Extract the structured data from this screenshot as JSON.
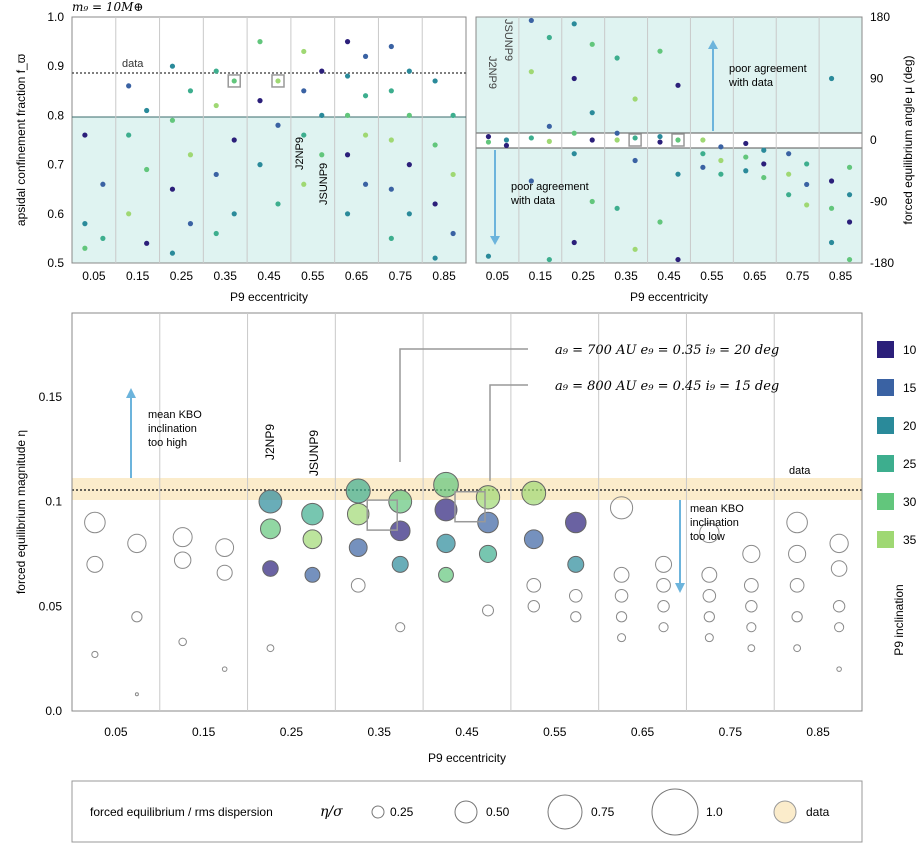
{
  "colors": {
    "panel_fill": "#dff3f1",
    "data_band": "#fbeccb",
    "arrow": "#6cb4dc",
    "inc_10": "#2b1f7a",
    "inc_15": "#3a62a3",
    "inc_20": "#2a8a9a",
    "inc_25": "#3dae8e",
    "inc_30": "#62c67c",
    "inc_35": "#9fd873"
  },
  "header_label": "m₉ = 10M⊕",
  "panel_a": {
    "ylabel": "apsidal confinement fraction  f_ϖ",
    "xlabel": "P9 eccentricity",
    "x_ticks": [
      "0.05",
      "0.15",
      "0.25",
      "0.35",
      "0.45",
      "0.55",
      "0.65",
      "0.75",
      "0.85"
    ],
    "y_ticks": [
      "0.5",
      "0.6",
      "0.7",
      "0.8",
      "0.9",
      "1.0"
    ],
    "data_label": "data",
    "labels": [
      "J2NP9",
      "JSUNP9"
    ]
  },
  "panel_b": {
    "ylabel": "forced equilibrium angle  μ (deg)",
    "xlabel": "P9 eccentricity",
    "x_ticks": [
      "0.05",
      "0.15",
      "0.25",
      "0.35",
      "0.45",
      "0.55",
      "0.65",
      "0.75",
      "0.85"
    ],
    "y_ticks": [
      "180",
      "90",
      "0",
      "-90",
      "-180"
    ],
    "labels": [
      "J2NP9",
      "JSUNP9"
    ],
    "note_up": [
      "poor agreement",
      "with data"
    ],
    "note_down": [
      "poor agreement",
      "with data"
    ]
  },
  "panel_c": {
    "ylabel": "forced equilibrium magnitude  η",
    "xlabel": "P9 eccentricity",
    "x_ticks": [
      "0.05",
      "0.15",
      "0.25",
      "0.35",
      "0.45",
      "0.55",
      "0.65",
      "0.75",
      "0.85"
    ],
    "y_ticks": [
      "0.0",
      "0.05",
      "0.1",
      "0.15"
    ],
    "data_label": "data",
    "labels": [
      "J2NP9",
      "JSUNP9"
    ],
    "note_high": [
      "mean KBO",
      "inclination",
      "too high"
    ],
    "note_low": [
      "mean KBO",
      "inclination",
      "too low"
    ],
    "callouts": [
      "a₉ = 700 AU   e₉ = 0.35   i₉ = 20 deg",
      "a₉ = 800 AU   e₉ = 0.45   i₉ = 15 deg"
    ]
  },
  "colorbar": {
    "title": "P9 inclination",
    "labels": [
      "10",
      "15",
      "20",
      "25",
      "30",
      "35"
    ]
  },
  "size_legend": {
    "title": "forced equilibrium / rms dispersion",
    "symbol": "η/σ",
    "items": [
      "0.25",
      "0.50",
      "0.75",
      "1.0"
    ],
    "data_item": "data"
  },
  "chart_data": [
    {
      "type": "scatter",
      "name": "panel_a",
      "xlabel": "P9 eccentricity",
      "ylabel": "apsidal confinement fraction",
      "xlim": [
        0.0,
        0.9
      ],
      "ylim": [
        0.5,
        1.0
      ],
      "reference_line": {
        "label": "data",
        "value": 0.89
      },
      "agreement_threshold": 0.8,
      "series": [
        {
          "e": 0.05,
          "values": [
            0.76,
            0.66,
            0.58,
            0.55,
            0.53
          ]
        },
        {
          "e": 0.15,
          "values": [
            0.86,
            0.81,
            0.76,
            0.69,
            0.6,
            0.54
          ]
        },
        {
          "e": 0.25,
          "values": [
            0.9,
            0.85,
            0.79,
            0.72,
            0.65,
            0.58,
            0.52
          ]
        },
        {
          "e": 0.35,
          "values": [
            0.89,
            0.87,
            0.82,
            0.75,
            0.68,
            0.6,
            0.56
          ]
        },
        {
          "e": 0.45,
          "values": [
            0.95,
            0.87,
            0.83,
            0.78,
            0.7,
            0.62
          ]
        },
        {
          "e": 0.55,
          "values": [
            0.93,
            0.89,
            0.85,
            0.8,
            0.76,
            0.72,
            0.66
          ]
        },
        {
          "e": 0.65,
          "values": [
            0.95,
            0.92,
            0.88,
            0.84,
            0.8,
            0.76,
            0.72,
            0.66,
            0.6
          ]
        },
        {
          "e": 0.75,
          "values": [
            0.94,
            0.89,
            0.85,
            0.8,
            0.75,
            0.7,
            0.65,
            0.6,
            0.55
          ]
        },
        {
          "e": 0.85,
          "values": [
            0.87,
            0.8,
            0.74,
            0.68,
            0.62,
            0.56,
            0.51
          ]
        }
      ],
      "highlight": [
        {
          "e": 0.35,
          "value": 0.87
        },
        {
          "e": 0.45,
          "value": 0.87
        }
      ]
    },
    {
      "type": "scatter",
      "name": "panel_b",
      "xlabel": "P9 eccentricity",
      "ylabel": "forced equilibrium angle (deg)",
      "xlim": [
        0.0,
        0.9
      ],
      "ylim": [
        -180,
        180
      ],
      "agreement_band": [
        -10,
        10
      ],
      "series": [
        {
          "e": 0.05,
          "values": [
            5,
            0,
            -3,
            -8,
            -170
          ]
        },
        {
          "e": 0.15,
          "values": [
            175,
            150,
            100,
            20,
            3,
            -2,
            -60,
            -175
          ]
        },
        {
          "e": 0.25,
          "values": [
            170,
            140,
            90,
            40,
            10,
            0,
            -20,
            -90,
            -150
          ]
        },
        {
          "e": 0.35,
          "values": [
            120,
            60,
            10,
            3,
            0,
            -30,
            -100,
            -160
          ]
        },
        {
          "e": 0.45,
          "values": [
            130,
            80,
            5,
            0,
            -3,
            -50,
            -120,
            -175
          ]
        },
        {
          "e": 0.55,
          "values": [
            0,
            -10,
            -20,
            -30,
            -40,
            -50
          ]
        },
        {
          "e": 0.65,
          "values": [
            -5,
            -15,
            -25,
            -35,
            -45,
            -55
          ]
        },
        {
          "e": 0.75,
          "values": [
            -20,
            -35,
            -50,
            -65,
            -80,
            -95
          ]
        },
        {
          "e": 0.85,
          "values": [
            90,
            -40,
            -60,
            -80,
            -100,
            -120,
            -150,
            -175
          ]
        }
      ],
      "highlight": [
        {
          "e": 0.35,
          "value": 0
        },
        {
          "e": 0.45,
          "value": 0
        }
      ]
    },
    {
      "type": "scatter",
      "name": "panel_c",
      "xlabel": "P9 eccentricity",
      "ylabel": "forced equilibrium magnitude",
      "xlim": [
        0.0,
        0.9
      ],
      "ylim": [
        0.0,
        0.19
      ],
      "reference_line": {
        "label": "data",
        "value": 0.1,
        "band": [
          0.095,
          0.105
        ]
      },
      "series": [
        {
          "e": 0.05,
          "values": [
            0.09,
            0.08,
            0.07,
            0.045,
            0.027,
            0.008
          ]
        },
        {
          "e": 0.15,
          "values": [
            0.083,
            0.078,
            0.072,
            0.066,
            0.033,
            0.02
          ]
        },
        {
          "e": 0.25,
          "values": [
            0.1,
            0.094,
            0.087,
            0.082,
            0.068,
            0.065,
            0.03
          ]
        },
        {
          "e": 0.35,
          "values": [
            0.105,
            0.1,
            0.094,
            0.086,
            0.078,
            0.07,
            0.06,
            0.04
          ]
        },
        {
          "e": 0.45,
          "values": [
            0.108,
            0.102,
            0.096,
            0.09,
            0.08,
            0.075,
            0.065,
            0.048
          ]
        },
        {
          "e": 0.55,
          "values": [
            0.104,
            0.09,
            0.082,
            0.07,
            0.06,
            0.055,
            0.05,
            0.045
          ]
        },
        {
          "e": 0.65,
          "values": [
            0.097,
            0.07,
            0.065,
            0.06,
            0.055,
            0.05,
            0.045,
            0.04,
            0.035
          ]
        },
        {
          "e": 0.75,
          "values": [
            0.085,
            0.075,
            0.065,
            0.06,
            0.055,
            0.05,
            0.045,
            0.04,
            0.035,
            0.03
          ]
        },
        {
          "e": 0.85,
          "values": [
            0.09,
            0.08,
            0.075,
            0.068,
            0.06,
            0.05,
            0.045,
            0.04,
            0.03,
            0.02
          ]
        }
      ],
      "highlight": [
        {
          "e": 0.35,
          "value": 0.094
        },
        {
          "e": 0.45,
          "value": 0.098
        }
      ]
    }
  ]
}
